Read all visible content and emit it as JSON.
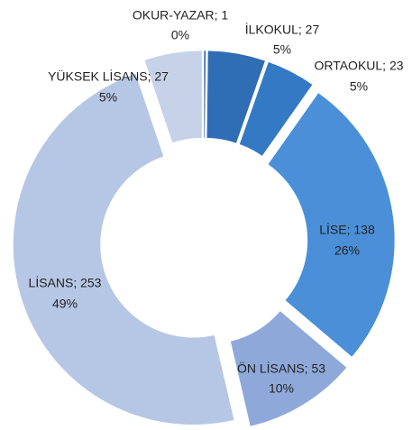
{
  "chart_data": {
    "type": "donut",
    "values": [
      1,
      27,
      23,
      138,
      53,
      253,
      27
    ],
    "value_labels": [
      "OKUR-YAZAR; 1",
      "İLKOKUL; 27",
      "ORTAOKUL; 23",
      "LİSE; 138",
      "ÖN LİSANS; 53",
      "LİSANS; 253",
      "YÜKSEK LİSANS; 27"
    ],
    "percent_labels": [
      "0%",
      "5%",
      "5%",
      "26%",
      "10%",
      "49%",
      "5%"
    ],
    "colors": [
      "#3b6fae",
      "#2f6db5",
      "#3479c4",
      "#4a8fd8",
      "#8ea9d9",
      "#b6c7e5",
      "#c5d2e8"
    ]
  }
}
